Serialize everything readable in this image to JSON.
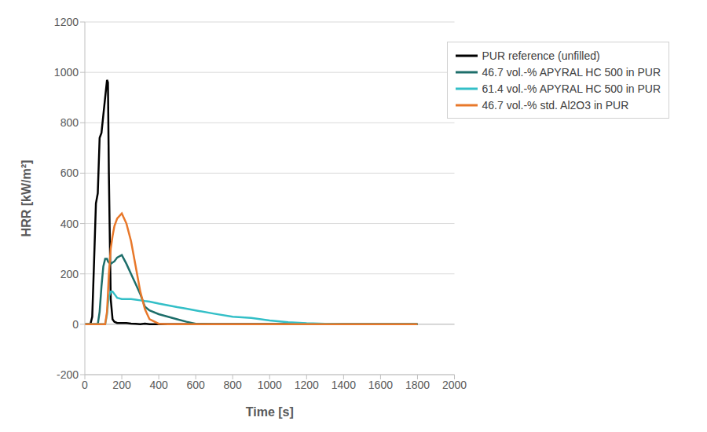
{
  "chart_data": {
    "type": "line",
    "x_label": "Time [s]",
    "y_label": "HRR [kW/m²]",
    "x": [
      0,
      30,
      40,
      50,
      60,
      70,
      80,
      90,
      100,
      110,
      120,
      125,
      130,
      140,
      150,
      160,
      175,
      200,
      225,
      250,
      275,
      300,
      325,
      350,
      400,
      450,
      500,
      550,
      600,
      700,
      800,
      900,
      1000,
      1100,
      1200,
      1300,
      1400,
      1500,
      1600,
      1700,
      1800
    ],
    "series": [
      {
        "name": "PUR reference (unfilled)",
        "color": "#000000",
        "values": [
          0,
          0,
          30,
          250,
          480,
          520,
          740,
          760,
          830,
          900,
          970,
          960,
          600,
          100,
          20,
          10,
          5,
          5,
          5,
          3,
          2,
          0,
          3,
          0,
          0,
          0,
          0,
          0,
          0,
          0,
          0,
          0,
          0,
          0,
          0,
          0,
          0,
          0,
          0,
          0,
          0
        ]
      },
      {
        "name": "46.7 vol.-% APYRAL HC 500 in PUR",
        "color": "#1d6e6a",
        "values": [
          0,
          0,
          0,
          0,
          0,
          0,
          50,
          150,
          230,
          260,
          260,
          250,
          245,
          240,
          245,
          250,
          265,
          275,
          240,
          200,
          160,
          120,
          70,
          55,
          40,
          30,
          20,
          10,
          2,
          0,
          0,
          0,
          0,
          0,
          0,
          0,
          0,
          0,
          0,
          0,
          0
        ]
      },
      {
        "name": "61.4 vol.-% APYRAL HC 500 in PUR",
        "color": "#33bfc7",
        "values": [
          0,
          0,
          0,
          0,
          0,
          0,
          0,
          0,
          0,
          0,
          40,
          80,
          110,
          130,
          130,
          120,
          105,
          100,
          100,
          100,
          98,
          95,
          92,
          90,
          82,
          75,
          68,
          62,
          55,
          42,
          30,
          25,
          15,
          8,
          4,
          2,
          0,
          0,
          0,
          0,
          0
        ]
      },
      {
        "name": "46.7 vol.-% std. Al2O3 in PUR",
        "color": "#e8782a",
        "values": [
          0,
          0,
          0,
          0,
          0,
          0,
          0,
          0,
          0,
          0,
          50,
          120,
          200,
          300,
          350,
          390,
          420,
          440,
          400,
          330,
          230,
          130,
          60,
          20,
          2,
          0,
          0,
          0,
          0,
          0,
          0,
          0,
          0,
          0,
          0,
          0,
          0,
          0,
          0,
          0,
          0
        ]
      }
    ],
    "xlim": [
      0,
      2000
    ],
    "xticks": [
      0,
      200,
      400,
      600,
      800,
      1000,
      1200,
      1400,
      1600,
      1800,
      2000
    ],
    "ylim": [
      -200,
      1200
    ],
    "yticks": [
      -200,
      0,
      200,
      400,
      600,
      800,
      1000,
      1200
    ],
    "grid": true,
    "legend": "upper right"
  }
}
